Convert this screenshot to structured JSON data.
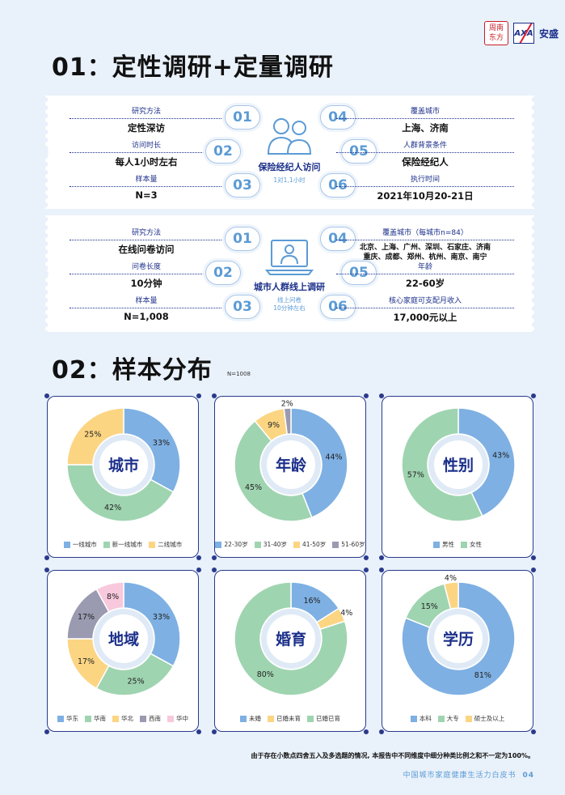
{
  "logos": {
    "seal_text": [
      "周",
      "南",
      "东",
      "方"
    ],
    "axa_mark": "AXA",
    "axa_name": "安盛"
  },
  "section1_title": "01：定性调研+定量调研",
  "section2_title": "02：样本分布",
  "sample_note": "N=1008",
  "qual": {
    "center_title": "保险经纪人访问",
    "center_sub": "1对1,1小时",
    "items": [
      {
        "num": "01",
        "label": "研究方法",
        "value": "定性深访"
      },
      {
        "num": "02",
        "label": "访问时长",
        "value": "每人1小时左右"
      },
      {
        "num": "03",
        "label": "样本量",
        "value": "N=3"
      },
      {
        "num": "04",
        "label": "覆盖城市",
        "value": "上海、济南"
      },
      {
        "num": "05",
        "label": "人群背景条件",
        "value": "保险经纪人"
      },
      {
        "num": "06",
        "label": "执行时间",
        "value": "2021年10月20-21日"
      }
    ]
  },
  "quant": {
    "center_title": "城市人群线上调研",
    "center_sub1": "线上问卷",
    "center_sub2": "10分钟左右",
    "items": [
      {
        "num": "01",
        "label": "研究方法",
        "value": "在线问卷访问"
      },
      {
        "num": "02",
        "label": "问卷长度",
        "value": "10分钟"
      },
      {
        "num": "03",
        "label": "样本量",
        "value": "N=1,008"
      },
      {
        "num": "04",
        "label": "覆盖城市（每城市n=84）",
        "value": "北京、上海、广州、深圳、石家庄、济南",
        "value2": "重庆、成都、郑州、杭州、南京、南宁"
      },
      {
        "num": "05",
        "label": "年龄",
        "value": "22-60岁"
      },
      {
        "num": "06",
        "label": "核心家庭可支配月收入",
        "value": "17,000元以上"
      }
    ]
  },
  "chart_data": [
    {
      "type": "pie",
      "title": "城市",
      "categories": [
        "一线城市",
        "新一线城市",
        "二线城市"
      ],
      "values": [
        33,
        42,
        25
      ],
      "colors": [
        "#7eb0e3",
        "#9fd4b0",
        "#fcd583"
      ]
    },
    {
      "type": "pie",
      "title": "年龄",
      "categories": [
        "22-30岁",
        "31-40岁",
        "41-50岁",
        "51-60岁"
      ],
      "values": [
        44,
        45,
        9,
        2
      ],
      "colors": [
        "#7eb0e3",
        "#9fd4b0",
        "#fcd583",
        "#9a9bb0"
      ]
    },
    {
      "type": "pie",
      "title": "性别",
      "categories": [
        "男性",
        "女性"
      ],
      "values": [
        43,
        57
      ],
      "colors": [
        "#7eb0e3",
        "#9fd4b0"
      ]
    },
    {
      "type": "pie",
      "title": "地域",
      "categories": [
        "华东",
        "华南",
        "华北",
        "西南",
        "华中"
      ],
      "values": [
        33,
        25,
        17,
        17,
        8
      ],
      "colors": [
        "#7eb0e3",
        "#9fd4b0",
        "#fcd583",
        "#9a9bb0",
        "#f8c8dc"
      ]
    },
    {
      "type": "pie",
      "title": "婚育",
      "categories": [
        "未婚",
        "已婚未育",
        "已婚已育"
      ],
      "values": [
        16,
        4,
        80
      ],
      "colors": [
        "#7eb0e3",
        "#fcd583",
        "#9fd4b0"
      ]
    },
    {
      "type": "pie",
      "title": "学历",
      "categories": [
        "本科",
        "大专",
        "硕士及以上"
      ],
      "values": [
        81,
        15,
        4
      ],
      "colors": [
        "#7eb0e3",
        "#9fd4b0",
        "#fcd583"
      ]
    }
  ],
  "footnote": "由于存在小数点四舍五入及多选题的情况, 本报告中不同维度中细分种类比例之和不一定为100%。",
  "footer": {
    "title": "中国城市家庭健康生活力白皮书",
    "page": "04"
  }
}
